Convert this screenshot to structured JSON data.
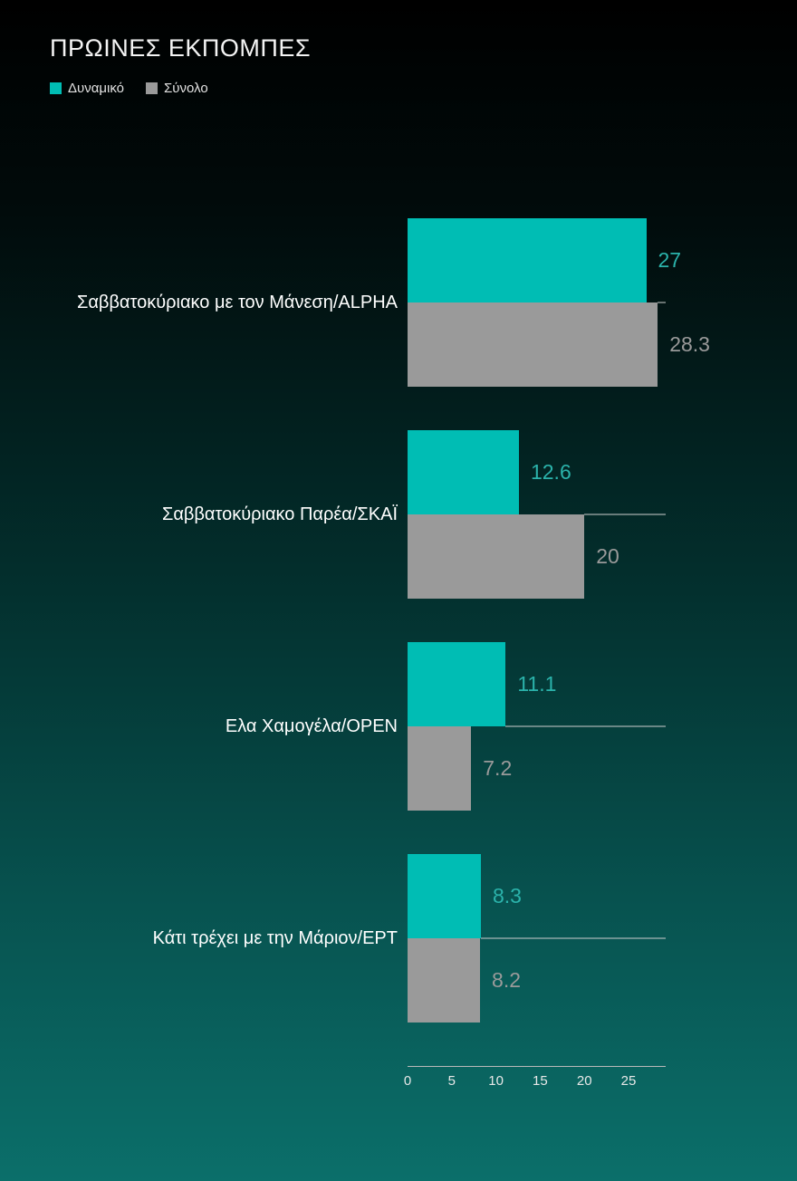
{
  "chart_data": {
    "type": "bar",
    "orientation": "horizontal",
    "title": "ΠΡΩΙΝΕΣ ΕΚΠΟΜΠΕΣ",
    "categories": [
      "Σαββατοκύριακο με τον Μάνεση/ALPHA",
      "Σαββατοκύριακο Παρέα/ΣΚΑΪ",
      "Ελα Χαμογέλα/OPEN",
      "Κάτι τρέχει με την Μάριον/ΕΡΤ"
    ],
    "series": [
      {
        "name": "Δυναμικό",
        "color": "#00bdb4",
        "label_color": "#2bb3ab",
        "values": [
          27,
          12.6,
          11.1,
          8.3
        ],
        "value_labels": [
          "27",
          "12.6",
          "11.1",
          "8.3"
        ]
      },
      {
        "name": "Σύνολο",
        "color": "#9a9a9a",
        "label_color": "#9a9a9a",
        "values": [
          28.3,
          20,
          7.2,
          8.2
        ],
        "value_labels": [
          "28.3",
          "20",
          "7.2",
          "8.2"
        ]
      }
    ],
    "x_ticks": [
      0,
      5,
      10,
      15,
      20,
      25
    ],
    "xlim": [
      0,
      29.2
    ],
    "legend_position": "top-left",
    "grid": "per-category-baseline",
    "background": "black-to-teal-gradient"
  }
}
